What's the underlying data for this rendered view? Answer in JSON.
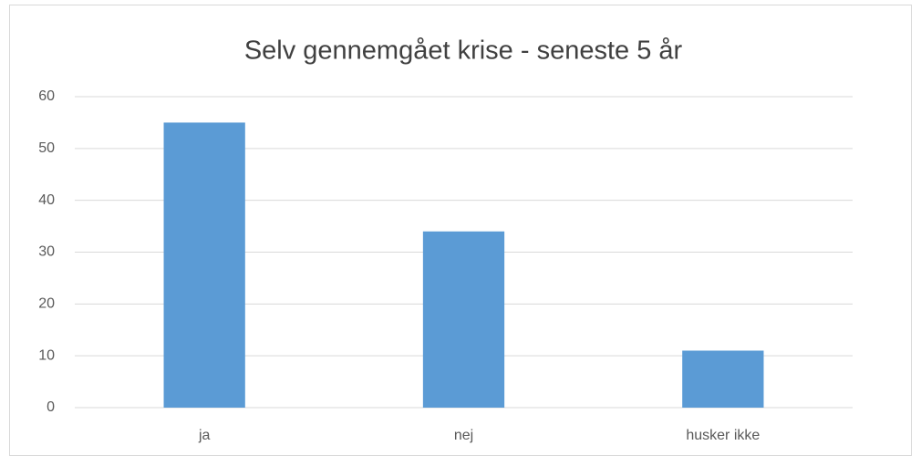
{
  "chart_data": {
    "type": "bar",
    "title": "Selv gennemgået krise - seneste 5 år",
    "categories": [
      "ja",
      "nej",
      "husker ikke"
    ],
    "values": [
      55,
      34,
      11
    ],
    "color": "#5b9bd5",
    "ylim": [
      0,
      60
    ],
    "yticks": [
      0,
      10,
      20,
      30,
      40,
      50,
      60
    ],
    "grid": true
  }
}
